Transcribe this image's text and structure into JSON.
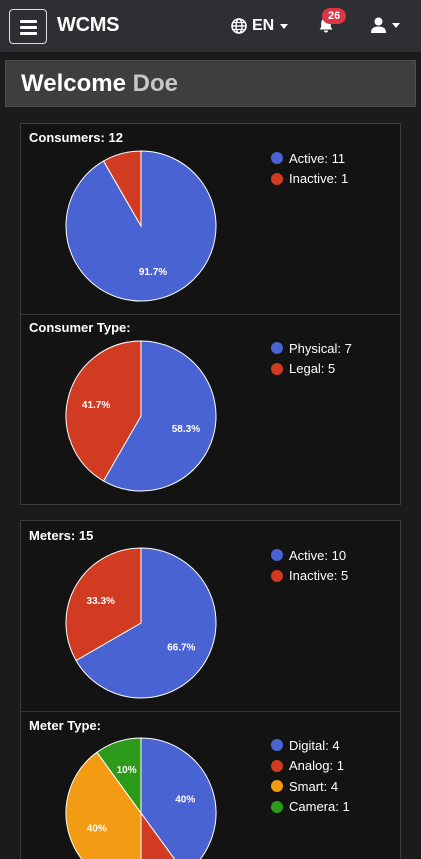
{
  "navbar": {
    "brand": "WCMS",
    "language": "EN",
    "notification_count": "26"
  },
  "welcome": {
    "greeting": "Welcome",
    "name": "Doe"
  },
  "colors": {
    "blue": "#4a63d2",
    "red": "#d13b22",
    "orange": "#f39b12",
    "green": "#2d9a1b"
  },
  "chart_data": [
    {
      "type": "pie",
      "title": "Consumers: 12",
      "slices": [
        {
          "label": "Active",
          "legend": "Active: 11",
          "value": 11,
          "color": "#4a63d2",
          "pct_label": "91.7%"
        },
        {
          "label": "Inactive",
          "legend": "Inactive: 1",
          "value": 1,
          "color": "#d13b22",
          "pct_label": ""
        }
      ],
      "legend_position": "right"
    },
    {
      "type": "pie",
      "title": "Consumer Type:",
      "slices": [
        {
          "label": "Physical",
          "legend": "Physical: 7",
          "value": 7,
          "color": "#4a63d2",
          "pct_label": "58.3%"
        },
        {
          "label": "Legal",
          "legend": "Legal: 5",
          "value": 5,
          "color": "#d13b22",
          "pct_label": "41.7%"
        }
      ],
      "legend_position": "right"
    },
    {
      "type": "pie",
      "title": "Meters: 15",
      "slices": [
        {
          "label": "Active",
          "legend": "Active: 10",
          "value": 10,
          "color": "#4a63d2",
          "pct_label": "66.7%"
        },
        {
          "label": "Inactive",
          "legend": "Inactive: 5",
          "value": 5,
          "color": "#d13b22",
          "pct_label": "33.3%"
        }
      ],
      "legend_position": "right"
    },
    {
      "type": "pie",
      "title": "Meter Type:",
      "slices": [
        {
          "label": "Digital",
          "legend": "Digital: 4",
          "value": 4,
          "color": "#4a63d2",
          "pct_label": "40%"
        },
        {
          "label": "Analog",
          "legend": "Analog: 1",
          "value": 1,
          "color": "#d13b22",
          "pct_label": ""
        },
        {
          "label": "Smart",
          "legend": "Smart: 4",
          "value": 4,
          "color": "#f39b12",
          "pct_label": "40%"
        },
        {
          "label": "Camera",
          "legend": "Camera: 1",
          "value": 1,
          "color": "#2d9a1b",
          "pct_label": "10%"
        }
      ],
      "legend_position": "right"
    }
  ]
}
